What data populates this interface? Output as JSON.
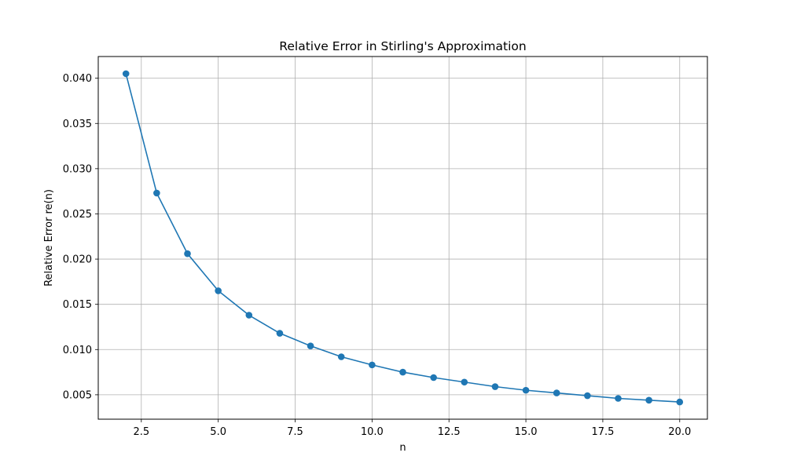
{
  "chart_data": {
    "type": "line",
    "title": "Relative Error in Stirling's Approximation",
    "xlabel": "n",
    "ylabel": "Relative Error re(n)",
    "xlim": [
      1.1,
      20.9
    ],
    "ylim": [
      0.0023,
      0.0424
    ],
    "xticks": [
      2.5,
      5.0,
      7.5,
      10.0,
      12.5,
      15.0,
      17.5,
      20.0
    ],
    "xtick_labels": [
      "2.5",
      "5.0",
      "7.5",
      "10.0",
      "12.5",
      "15.0",
      "17.5",
      "20.0"
    ],
    "yticks": [
      0.005,
      0.01,
      0.015,
      0.02,
      0.025,
      0.03,
      0.035,
      0.04
    ],
    "ytick_labels": [
      "0.005",
      "0.010",
      "0.015",
      "0.020",
      "0.025",
      "0.030",
      "0.035",
      "0.040"
    ],
    "grid": true,
    "markers": "circle",
    "color": "#1f77b4",
    "series": [
      {
        "x": [
          2,
          3,
          4,
          5,
          6,
          7,
          8,
          9,
          10,
          11,
          12,
          13,
          14,
          15,
          16,
          17,
          18,
          19,
          20
        ],
        "values": [
          0.0405,
          0.0273,
          0.0206,
          0.0165,
          0.0138,
          0.0118,
          0.0104,
          0.0092,
          0.0083,
          0.0075,
          0.0069,
          0.0064,
          0.0059,
          0.0055,
          0.0052,
          0.0049,
          0.0046,
          0.0044,
          0.0042
        ]
      }
    ]
  }
}
